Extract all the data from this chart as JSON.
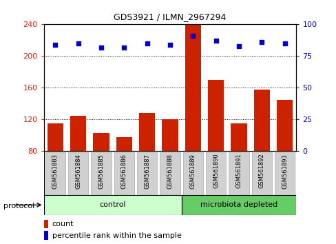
{
  "title": "GDS3921 / ILMN_2967294",
  "samples": [
    "GSM561883",
    "GSM561884",
    "GSM561885",
    "GSM561886",
    "GSM561887",
    "GSM561888",
    "GSM561889",
    "GSM561890",
    "GSM561891",
    "GSM561892",
    "GSM561893"
  ],
  "counts": [
    115,
    125,
    103,
    98,
    128,
    120,
    240,
    170,
    115,
    158,
    145
  ],
  "percentile_ranks": [
    84,
    85,
    82,
    82,
    85,
    84,
    91,
    87,
    83,
    86,
    85
  ],
  "left_ylim": [
    80,
    240
  ],
  "left_yticks": [
    80,
    120,
    160,
    200,
    240
  ],
  "right_ylim": [
    0,
    100
  ],
  "right_yticks": [
    0,
    25,
    50,
    75,
    100
  ],
  "bar_color": "#cc2200",
  "dot_color": "#0000cc",
  "bg_color": "#ffffff",
  "n_control": 6,
  "n_micro": 5,
  "control_label": "control",
  "microbiota_label": "microbiota depleted",
  "protocol_label": "protocol",
  "legend_count": "count",
  "legend_percentile": "percentile rank within the sample",
  "control_color": "#ccffcc",
  "microbiota_color": "#66cc66",
  "tick_label_bg": "#d0d0d0",
  "title_fontsize": 9
}
